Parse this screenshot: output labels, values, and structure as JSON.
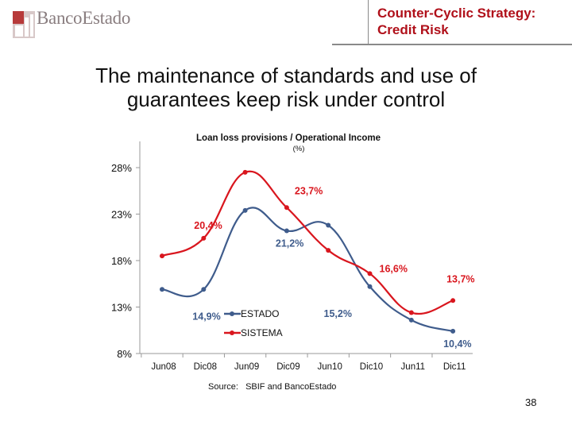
{
  "header": {
    "logo_text": "BancoEstado",
    "title_line1": "Counter-Cyclic Strategy:",
    "title_line2": "Credit Risk"
  },
  "slide": {
    "subtitle_line1": "The maintenance of standards and use of",
    "subtitle_line2": "guarantees keep risk under control",
    "source": "Source:   SBIF and BancoEstado",
    "page_number": "38"
  },
  "colors": {
    "estado": "#3f5c8c",
    "sistema": "#d9161e",
    "header_red": "#b0101a"
  },
  "chart_data": {
    "type": "line",
    "title": "Loan loss provisions / Operational Income",
    "subtitle": "(%)",
    "categories": [
      "Jun08",
      "Dic08",
      "Jun09",
      "Dic09",
      "Jun10",
      "Dic10",
      "Jun11",
      "Dic11"
    ],
    "ylim": [
      8,
      28
    ],
    "yticks": [
      "28%",
      "23%",
      "18%",
      "13%",
      "8%"
    ],
    "legend": "inside-bottom-left",
    "series": [
      {
        "name": "ESTADO",
        "color": "#3f5c8c",
        "values": [
          14.9,
          14.9,
          23.4,
          21.2,
          21.8,
          15.2,
          11.6,
          10.4
        ]
      },
      {
        "name": "SISTEMA",
        "color": "#d9161e",
        "values": [
          18.5,
          20.4,
          27.5,
          23.7,
          19.1,
          16.6,
          12.4,
          13.7
        ]
      }
    ],
    "data_labels": [
      {
        "text": "23,7%",
        "series": "SISTEMA",
        "index": 3
      },
      {
        "text": "20,4%",
        "series": "SISTEMA",
        "index": 1
      },
      {
        "text": "21,2%",
        "series": "ESTADO",
        "index": 3
      },
      {
        "text": "14,9%",
        "series": "ESTADO",
        "index": 1
      },
      {
        "text": "16,6%",
        "series": "SISTEMA",
        "index": 5
      },
      {
        "text": "15,2%",
        "series": "ESTADO",
        "index": 5
      },
      {
        "text": "13,7%",
        "series": "SISTEMA",
        "index": 7
      },
      {
        "text": "10,4%",
        "series": "ESTADO",
        "index": 7
      }
    ]
  }
}
